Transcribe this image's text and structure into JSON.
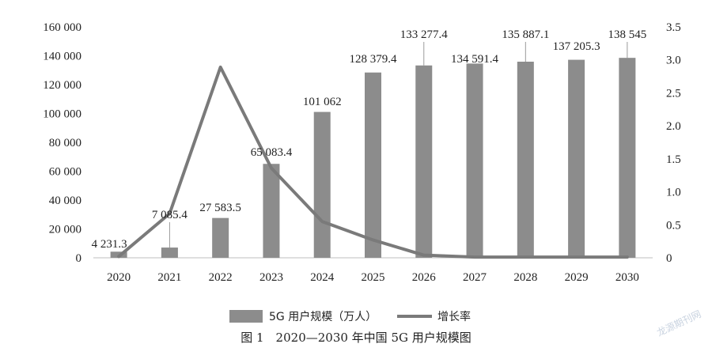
{
  "chart_data": {
    "type": "bar",
    "categories": [
      "2020",
      "2021",
      "2022",
      "2023",
      "2024",
      "2025",
      "2026",
      "2027",
      "2028",
      "2029",
      "2030"
    ],
    "series": [
      {
        "name": "5G 用户规模（万人）",
        "type": "bar",
        "axis": "left",
        "color": "#8c8c8c",
        "values": [
          4231.3,
          7085.4,
          27583.5,
          65083.4,
          101062,
          128379.4,
          133277.4,
          134591.4,
          135887.1,
          137205.3,
          138545
        ],
        "labels": [
          "4 231.3",
          "7 085.4",
          "27 583.5",
          "65 083.4",
          "101 062",
          "128 379.4",
          "133 277.4",
          "134 591.4",
          "135 887.1",
          "137 205.3",
          "138 545"
        ]
      },
      {
        "name": "增长率",
        "type": "line",
        "axis": "right",
        "color": "#7a7a7a",
        "values": [
          0.02,
          0.67,
          2.89,
          1.36,
          0.55,
          0.27,
          0.04,
          0.01,
          0.01,
          0.01,
          0.01
        ]
      }
    ],
    "left_axis": {
      "ylim": [
        0,
        160000
      ],
      "ticks": [
        "0",
        "20 000",
        "40 000",
        "60 000",
        "80 000",
        "100 000",
        "120 000",
        "140 000",
        "160 000"
      ]
    },
    "right_axis": {
      "ylim": [
        0,
        3.5
      ],
      "ticks": [
        "0",
        "0.5",
        "1.0",
        "1.5",
        "2.0",
        "2.5",
        "3.0",
        "3.5"
      ]
    },
    "grid": false,
    "legend_position": "bottom"
  },
  "caption": "图 1　2020—2030 年中国 5G 用户规模图",
  "watermark": "龙源期刊网",
  "colors": {
    "bar": "#8c8c8c",
    "line": "#7a7a7a",
    "axis": "#bfbfbf",
    "text": "#222222"
  }
}
